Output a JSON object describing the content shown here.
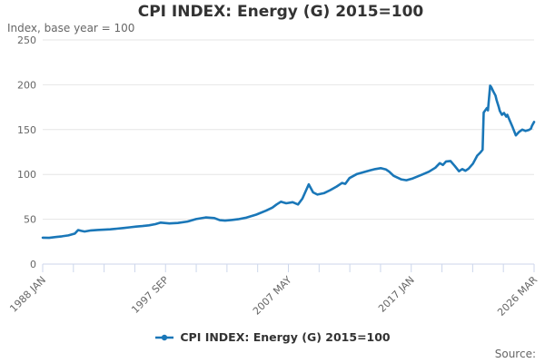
{
  "title": "CPI INDEX: Energy (G) 2015=100",
  "subtitle": "Index, base year = 100",
  "legend": {
    "label": "CPI INDEX: Energy (G) 2015=100"
  },
  "source_label": "Source:",
  "colors": {
    "series": "#1a77b8",
    "grid": "#e6e6e6",
    "axis": "#ccd6eb",
    "muted_text": "#666666",
    "dark_text": "#333333"
  },
  "chart_data": {
    "type": "line",
    "title": "CPI INDEX: Energy (G) 2015=100",
    "subtitle": "Index, base year = 100",
    "xlabel": "",
    "ylabel": "Index, base year = 100",
    "ylim": [
      0,
      250
    ],
    "y_ticks": [
      0,
      50,
      100,
      150,
      200,
      250
    ],
    "x_tick_labels": [
      "1988 JAN",
      "1997 SEP",
      "2007 MAY",
      "2017 JAN",
      "2026 MAR"
    ],
    "x_minor_tick_count": 17,
    "grid": "horizontal",
    "legend_position": "bottom",
    "x_start": "1988-01",
    "x_end": "2026-03",
    "series": [
      {
        "name": "CPI INDEX: Energy (G) 2015=100",
        "color": "#1a77b8",
        "points": [
          [
            "1988-01",
            29.5
          ],
          [
            "1988-07",
            29.3
          ],
          [
            "1989-01",
            30.2
          ],
          [
            "1989-07",
            31.0
          ],
          [
            "1990-01",
            32.0
          ],
          [
            "1990-07",
            34.0
          ],
          [
            "1990-10",
            38.0
          ],
          [
            "1991-01",
            37.0
          ],
          [
            "1991-04",
            36.3
          ],
          [
            "1991-10",
            37.5
          ],
          [
            "1992-04",
            38.1
          ],
          [
            "1992-10",
            38.4
          ],
          [
            "1993-04",
            38.8
          ],
          [
            "1993-10",
            39.5
          ],
          [
            "1994-04",
            40.2
          ],
          [
            "1994-10",
            41.0
          ],
          [
            "1995-04",
            41.8
          ],
          [
            "1995-10",
            42.4
          ],
          [
            "1996-04",
            43.2
          ],
          [
            "1996-10",
            44.5
          ],
          [
            "1997-03",
            46.3
          ],
          [
            "1997-11",
            45.3
          ],
          [
            "1998-07",
            45.8
          ],
          [
            "1999-04",
            47.5
          ],
          [
            "1999-12",
            50.2
          ],
          [
            "2000-09",
            52.0
          ],
          [
            "2001-05",
            51.3
          ],
          [
            "2001-10",
            49.0
          ],
          [
            "2002-03",
            48.5
          ],
          [
            "2002-09",
            49.2
          ],
          [
            "2003-03",
            50.0
          ],
          [
            "2003-11",
            51.8
          ],
          [
            "2004-08",
            55.2
          ],
          [
            "2005-05",
            59.5
          ],
          [
            "2005-11",
            63.0
          ],
          [
            "2006-03",
            66.5
          ],
          [
            "2006-07",
            69.5
          ],
          [
            "2006-12",
            67.8
          ],
          [
            "2007-06",
            69.0
          ],
          [
            "2007-11",
            66.5
          ],
          [
            "2008-03",
            73.0
          ],
          [
            "2008-06",
            81.0
          ],
          [
            "2008-09",
            89.0
          ],
          [
            "2009-01",
            80.0
          ],
          [
            "2009-05",
            77.5
          ],
          [
            "2009-11",
            79.0
          ],
          [
            "2010-05",
            82.5
          ],
          [
            "2010-11",
            86.5
          ],
          [
            "2011-04",
            90.5
          ],
          [
            "2011-07",
            89.5
          ],
          [
            "2011-11",
            96.0
          ],
          [
            "2012-06",
            100.5
          ],
          [
            "2012-12",
            102.5
          ],
          [
            "2013-06",
            104.5
          ],
          [
            "2013-11",
            106.0
          ],
          [
            "2014-04",
            107.0
          ],
          [
            "2014-09",
            105.5
          ],
          [
            "2014-12",
            103.0
          ],
          [
            "2015-04",
            98.5
          ],
          [
            "2015-11",
            94.5
          ],
          [
            "2016-04",
            93.5
          ],
          [
            "2016-10",
            95.5
          ],
          [
            "2017-06",
            99.5
          ],
          [
            "2018-01",
            103.0
          ],
          [
            "2018-07",
            107.5
          ],
          [
            "2018-11",
            112.5
          ],
          [
            "2019-02",
            110.5
          ],
          [
            "2019-05",
            114.5
          ],
          [
            "2019-09",
            115.0
          ],
          [
            "2020-01",
            109.5
          ],
          [
            "2020-05",
            103.5
          ],
          [
            "2020-08",
            106.0
          ],
          [
            "2020-11",
            104.0
          ],
          [
            "2021-02",
            106.5
          ],
          [
            "2021-06",
            112.0
          ],
          [
            "2021-10",
            121.0
          ],
          [
            "2022-01",
            124.5
          ],
          [
            "2022-03",
            127.5
          ],
          [
            "2022-04",
            169.0
          ],
          [
            "2022-07",
            174.0
          ],
          [
            "2022-08",
            171.5
          ],
          [
            "2022-10",
            199.0
          ],
          [
            "2022-11",
            197.5
          ],
          [
            "2023-01",
            192.5
          ],
          [
            "2023-03",
            188.0
          ],
          [
            "2023-04",
            183.0
          ],
          [
            "2023-06",
            175.5
          ],
          [
            "2023-07",
            171.0
          ],
          [
            "2023-09",
            166.5
          ],
          [
            "2023-11",
            168.5
          ],
          [
            "2024-01",
            164.5
          ],
          [
            "2024-02",
            166.5
          ],
          [
            "2024-04",
            161.0
          ],
          [
            "2024-07",
            152.5
          ],
          [
            "2024-10",
            143.5
          ],
          [
            "2025-01",
            147.5
          ],
          [
            "2025-04",
            150.0
          ],
          [
            "2025-07",
            148.5
          ],
          [
            "2025-10",
            149.5
          ],
          [
            "2025-12",
            151.0
          ],
          [
            "2026-01",
            154.0
          ],
          [
            "2026-03",
            158.5
          ]
        ]
      }
    ]
  }
}
